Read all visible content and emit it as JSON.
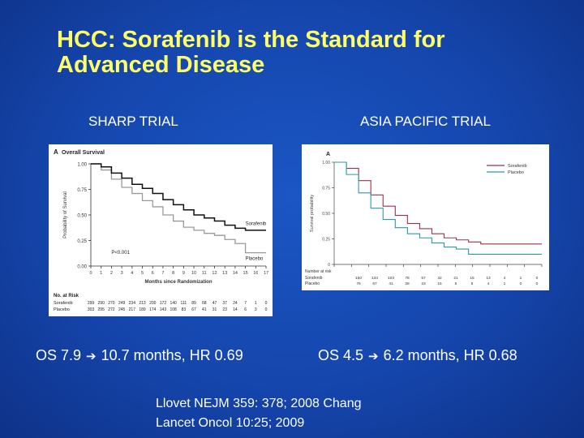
{
  "title": {
    "line1": "HCC:  Sorafenib is the Standard for",
    "line2": "Advanced Disease"
  },
  "left": {
    "label": "SHARP TRIAL",
    "os": {
      "before": "OS 7.9",
      "after": "10.7 months, HR 0.69"
    }
  },
  "right": {
    "label": "ASIA PACIFIC TRIAL",
    "os": {
      "before": "OS 4.5",
      "after": "6.2 months, HR 0.68"
    }
  },
  "citation": {
    "line1": "Llovet NEJM 359: 378; 2008  Chang",
    "line2": "Lancet Oncol 10:25; 2009"
  },
  "icons": {
    "arrow": "arrow-right-icon"
  },
  "colors": {
    "title": "#ffff66",
    "sorafenib_left": "#111111",
    "placebo_left": "#9a9a9a",
    "sorafenib_right": "#a0304a",
    "placebo_right": "#2a9aa8"
  },
  "chart_data": [
    {
      "type": "line",
      "panel_letter": "A",
      "title": "Overall Survival",
      "ylabel": "Probability of Survival",
      "xlabel": "Months since Randomization",
      "xlim": [
        0,
        17
      ],
      "ylim": [
        0,
        1
      ],
      "x_ticks": [
        "0",
        "1",
        "2",
        "3",
        "4",
        "5",
        "6",
        "7",
        "8",
        "9",
        "10",
        "11",
        "12",
        "13",
        "14",
        "15",
        "16",
        "17"
      ],
      "y_ticks": [
        "0.00",
        "0.25",
        "0.50",
        "0.75",
        "1.00"
      ],
      "annotation": "P<0.001",
      "series": [
        {
          "name": "Sorafenib",
          "x": [
            0,
            1,
            2,
            3,
            4,
            5,
            6,
            7,
            8,
            9,
            10,
            11,
            12,
            13,
            14,
            15,
            16,
            17
          ],
          "y": [
            1.0,
            0.97,
            0.91,
            0.86,
            0.8,
            0.76,
            0.71,
            0.65,
            0.6,
            0.55,
            0.5,
            0.47,
            0.44,
            0.4,
            0.37,
            0.35,
            0.35,
            0.35
          ]
        },
        {
          "name": "Placebo",
          "x": [
            0,
            1,
            2,
            3,
            4,
            5,
            6,
            7,
            8,
            9,
            10,
            11,
            12,
            13,
            14,
            15,
            16,
            17
          ],
          "y": [
            1.0,
            0.94,
            0.85,
            0.77,
            0.71,
            0.64,
            0.58,
            0.5,
            0.44,
            0.38,
            0.35,
            0.32,
            0.3,
            0.26,
            0.22,
            0.13,
            0.13,
            0.13
          ]
        }
      ],
      "risk_table": {
        "header": "No. at Risk",
        "rows": [
          {
            "name": "Sorafenib",
            "values": [
              "299",
              "290",
              "270",
              "249",
              "234",
              "213",
              "200",
              "172",
              "140",
              "111",
              "89",
              "68",
              "47",
              "37",
              "24",
              "7",
              "1",
              "0"
            ]
          },
          {
            "name": "Placebo",
            "values": [
              "303",
              "295",
              "272",
              "245",
              "217",
              "189",
              "174",
              "143",
              "108",
              "83",
              "67",
              "41",
              "31",
              "23",
              "14",
              "6",
              "3",
              "0"
            ]
          }
        ]
      }
    },
    {
      "type": "line",
      "panel_letter": "A",
      "ylabel": "Survival probability",
      "xlim": [
        0,
        17
      ],
      "ylim": [
        0,
        1
      ],
      "y_ticks": [
        "0",
        "0.25",
        "0.50",
        "0.75",
        "1.00"
      ],
      "legend": "top-right",
      "series": [
        {
          "name": "Sorafenib",
          "x": [
            0,
            1,
            2,
            3,
            4,
            5,
            6,
            7,
            8,
            9,
            10,
            11,
            12,
            13,
            14,
            15,
            16,
            17
          ],
          "y": [
            1.0,
            0.94,
            0.82,
            0.68,
            0.57,
            0.48,
            0.4,
            0.35,
            0.3,
            0.26,
            0.24,
            0.22,
            0.2,
            0.2,
            0.2,
            0.2,
            0.2,
            0.2
          ]
        },
        {
          "name": "Placebo",
          "x": [
            0,
            1,
            2,
            3,
            4,
            5,
            6,
            7,
            8,
            9,
            10,
            11,
            12,
            13,
            14,
            15,
            16,
            17
          ],
          "y": [
            1.0,
            0.88,
            0.7,
            0.55,
            0.44,
            0.36,
            0.3,
            0.26,
            0.21,
            0.17,
            0.15,
            0.1,
            0.1,
            0.1,
            0.1,
            0.1,
            0.1,
            0.1
          ]
        }
      ],
      "risk_table": {
        "header": "Number at risk",
        "rows": [
          {
            "name": "Sorafenib",
            "values": [
              "150",
              "134",
              "103",
              "78",
              "57",
              "32",
              "21",
              "15",
              "13",
              "4",
              "1",
              "0"
            ]
          },
          {
            "name": "Placebo",
            "values": [
              "76",
              "67",
              "41",
              "28",
              "23",
              "15",
              "5",
              "5",
              "4",
              "1",
              "0",
              "0"
            ]
          }
        ]
      }
    }
  ]
}
